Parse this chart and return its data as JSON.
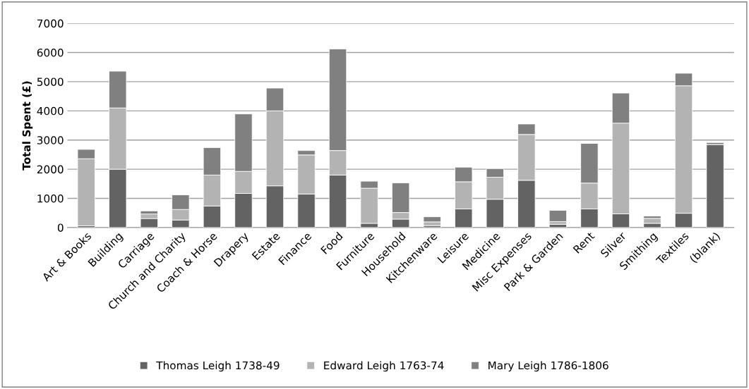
{
  "chart_data": {
    "type": "bar",
    "stacked": true,
    "ylabel": "Total Spent (£)",
    "categories": [
      "Art & Books",
      "Building",
      "Carriage",
      "Church and Charity",
      "Coach & Horse",
      "Drapery",
      "Estate",
      "Finance",
      "Food",
      "Furniture",
      "Household",
      "Kitchenware",
      "Leisure",
      "Medicine",
      "Misc Expenses",
      "Park & Garden",
      "Rent",
      "Silver",
      "Smithing",
      "Textiles",
      "(blank)"
    ],
    "series": [
      {
        "name": "Thomas Leigh 1738-49",
        "color": "#636363",
        "values": [
          60,
          2000,
          310,
          260,
          740,
          1170,
          1430,
          1150,
          1800,
          145,
          290,
          65,
          640,
          970,
          1620,
          110,
          640,
          470,
          145,
          490,
          2850
        ]
      },
      {
        "name": "Edward Leigh 1763-74",
        "color": "#b3b3b3",
        "values": [
          2300,
          2100,
          155,
          360,
          1060,
          755,
          2570,
          1340,
          840,
          1205,
          225,
          130,
          930,
          755,
          1570,
          95,
          885,
          3110,
          170,
          4370,
          0
        ]
      },
      {
        "name": "Mary Leigh 1786-1806",
        "color": "#808080",
        "values": [
          320,
          1260,
          105,
          500,
          940,
          1970,
          780,
          150,
          3480,
          240,
          1015,
          175,
          500,
          295,
          360,
          385,
          1360,
          1030,
          80,
          430,
          65
        ]
      }
    ],
    "ylim": [
      0,
      7000
    ],
    "yticks": [
      0,
      1000,
      2000,
      3000,
      4000,
      5000,
      6000,
      7000
    ],
    "grid": "y",
    "legend": "bottom"
  }
}
